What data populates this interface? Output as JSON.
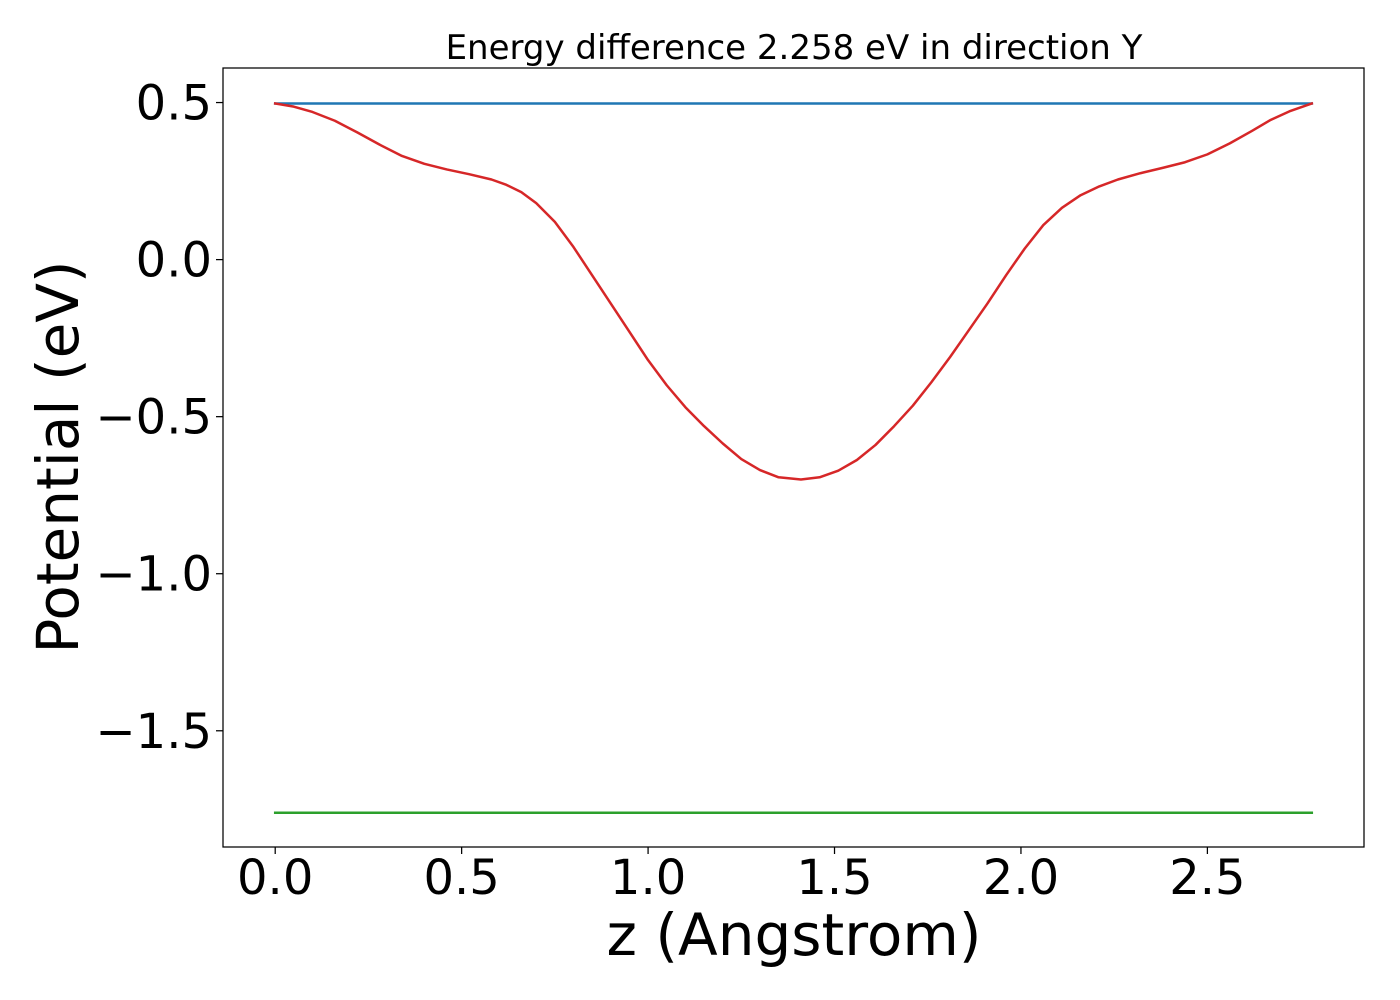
{
  "chart_data": {
    "type": "line",
    "title": "Energy difference 2.258 eV in direction Y",
    "xlabel": "z (Angstrom)",
    "ylabel": "Potential (eV)",
    "xlim": [
      -0.14,
      2.92
    ],
    "ylim": [
      -1.87,
      0.61
    ],
    "xticks": [
      0.0,
      0.5,
      1.0,
      1.5,
      2.0,
      2.5
    ],
    "xtick_labels": [
      "0.0",
      "0.5",
      "1.0",
      "1.5",
      "2.0",
      "2.5"
    ],
    "yticks": [
      0.5,
      0.0,
      -0.5,
      -1.0,
      -1.5
    ],
    "ytick_labels": [
      "0.5",
      "0.0",
      "−0.5",
      "−1.0",
      "−1.5"
    ],
    "grid": false,
    "legend": "none",
    "series": [
      {
        "color": "#1f77b4",
        "x": [
          0.0,
          2.78
        ],
        "y": [
          0.497,
          0.497
        ]
      },
      {
        "color": "#2ca02c",
        "x": [
          0.0,
          2.78
        ],
        "y": [
          -1.761,
          -1.761
        ]
      },
      {
        "color": "#d62728",
        "x": [
          0.0,
          0.05,
          0.1,
          0.16,
          0.22,
          0.28,
          0.34,
          0.4,
          0.46,
          0.52,
          0.58,
          0.62,
          0.66,
          0.7,
          0.75,
          0.8,
          0.85,
          0.9,
          0.95,
          1.0,
          1.05,
          1.1,
          1.15,
          1.2,
          1.25,
          1.3,
          1.35,
          1.41,
          1.46,
          1.51,
          1.56,
          1.61,
          1.66,
          1.71,
          1.76,
          1.81,
          1.86,
          1.91,
          1.96,
          2.01,
          2.06,
          2.11,
          2.16,
          2.21,
          2.26,
          2.32,
          2.38,
          2.44,
          2.5,
          2.56,
          2.62,
          2.67,
          2.72,
          2.78
        ],
        "y": [
          0.497,
          0.487,
          0.47,
          0.442,
          0.405,
          0.366,
          0.33,
          0.305,
          0.287,
          0.272,
          0.255,
          0.238,
          0.215,
          0.18,
          0.12,
          0.04,
          -0.05,
          -0.14,
          -0.23,
          -0.32,
          -0.4,
          -0.47,
          -0.53,
          -0.585,
          -0.635,
          -0.67,
          -0.693,
          -0.7,
          -0.693,
          -0.672,
          -0.638,
          -0.59,
          -0.53,
          -0.465,
          -0.39,
          -0.31,
          -0.225,
          -0.14,
          -0.05,
          0.035,
          0.11,
          0.165,
          0.205,
          0.233,
          0.255,
          0.275,
          0.292,
          0.31,
          0.335,
          0.37,
          0.41,
          0.445,
          0.472,
          0.497
        ]
      }
    ]
  }
}
